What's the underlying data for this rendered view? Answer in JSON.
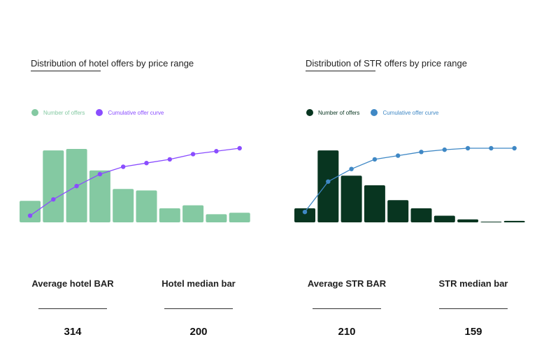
{
  "panels": [
    {
      "id": "hotel",
      "title": "Distribution of hotel offers by price range",
      "legend": [
        {
          "label": "Number of offers",
          "color": "#84c9a2"
        },
        {
          "label": "Cumulative offer curve",
          "color": "#8a4dff"
        }
      ],
      "stats": [
        {
          "label": "Average hotel BAR",
          "value": "314"
        },
        {
          "label": "Hotel median bar",
          "value": "200"
        }
      ]
    },
    {
      "id": "str",
      "title": "Distribution of STR offers by price range",
      "legend": [
        {
          "label": "Number of offers",
          "color": "#083520"
        },
        {
          "label": "Cumulative offer curve",
          "color": "#3f88c5"
        }
      ],
      "stats": [
        {
          "label": "Average STR BAR",
          "value": "210"
        },
        {
          "label": "STR median bar",
          "value": "159"
        }
      ]
    }
  ],
  "chart_data": [
    {
      "type": "bar",
      "title": "Distribution of hotel offers by price range",
      "series": [
        {
          "name": "Number of offers",
          "kind": "bar",
          "color": "#84c9a2",
          "values": [
            29,
            97,
            99,
            70,
            45,
            43,
            19,
            23,
            11,
            13
          ]
        },
        {
          "name": "Cumulative offer curve",
          "kind": "line",
          "color": "#8a4dff",
          "values": [
            9,
            31,
            49,
            65,
            75,
            80,
            85,
            92,
            96,
            100
          ]
        }
      ],
      "ylim": [
        0,
        100
      ],
      "grid": false,
      "legend": "top-left"
    },
    {
      "type": "bar",
      "title": "Distribution of STR offers by price range",
      "series": [
        {
          "name": "Number of offers",
          "kind": "bar",
          "color": "#083520",
          "values": [
            19,
            97,
            63,
            50,
            30,
            19,
            9,
            4,
            1,
            2
          ]
        },
        {
          "name": "Cumulative offer curve",
          "kind": "line",
          "color": "#3f88c5",
          "values": [
            14,
            55,
            72,
            85,
            90,
            95,
            98,
            100,
            100,
            100
          ]
        }
      ],
      "ylim": [
        0,
        100
      ],
      "grid": false,
      "legend": "top-left"
    }
  ]
}
